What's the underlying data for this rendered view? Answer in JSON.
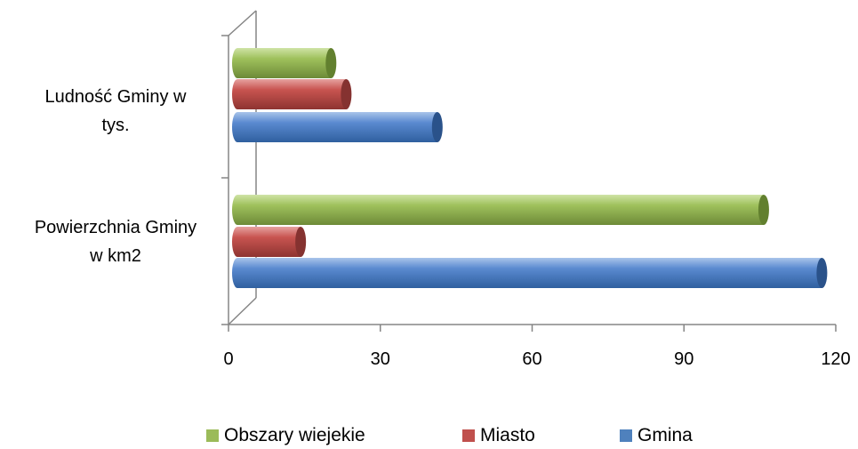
{
  "chart_data": {
    "type": "bar",
    "orientation": "horizontal",
    "three_d": true,
    "categories": [
      "Powierzchnia Gminy w km2",
      "Ludność Gminy w tys."
    ],
    "category_lines": [
      [
        "Powierzchnia Gminy",
        "w km2"
      ],
      [
        "Ludność Gminy w",
        "tys."
      ]
    ],
    "series": [
      {
        "name": "Gmina",
        "color": "#4f81bd",
        "values": [
          115.5,
          39.5
        ]
      },
      {
        "name": "Miasto",
        "color": "#c0504d",
        "values": [
          12.5,
          21.5
        ]
      },
      {
        "name": "Obszary wiejekie",
        "color": "#9bbb59",
        "values": [
          104,
          18.5
        ]
      }
    ],
    "x_ticks": [
      "0",
      "30",
      "60",
      "90",
      "120"
    ],
    "xlim": [
      0,
      120
    ],
    "grid": false,
    "legend_position": "bottom",
    "title": "",
    "xlabel": "",
    "ylabel": ""
  },
  "legend": [
    {
      "label": "Obszary wiejekie",
      "color": "#9bbb59"
    },
    {
      "label": "Miasto",
      "color": "#c0504d"
    },
    {
      "label": "Gmina",
      "color": "#4f81bd"
    }
  ]
}
